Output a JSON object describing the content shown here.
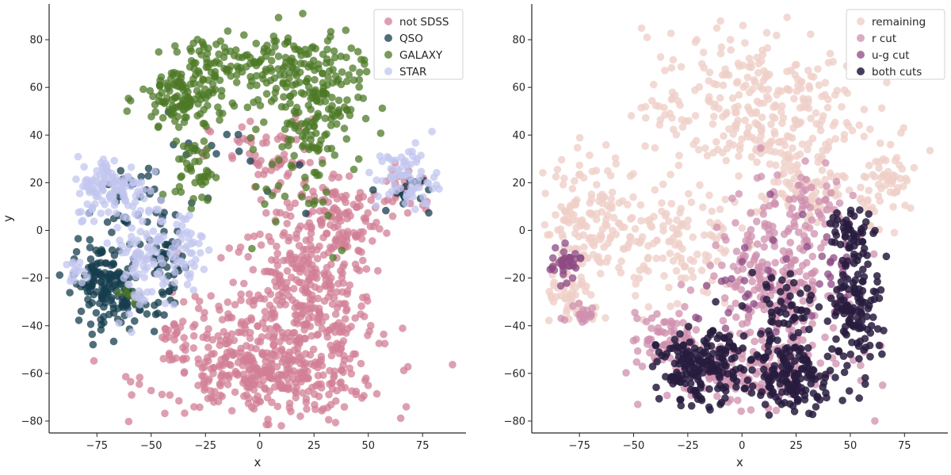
{
  "chart_data": [
    {
      "type": "scatter",
      "xlabel": "x",
      "ylabel": "y",
      "xlim": [
        -97,
        95
      ],
      "ylim": [
        -85,
        95
      ],
      "xticks": [
        -75,
        -50,
        -25,
        0,
        25,
        50,
        75
      ],
      "yticks": [
        -80,
        -60,
        -40,
        -20,
        0,
        20,
        40,
        60,
        80
      ],
      "xtick_labels": [
        "−75",
        "−50",
        "−25",
        "0",
        "25",
        "50",
        "75"
      ],
      "ytick_labels": [
        "−80",
        "−60",
        "−40",
        "−20",
        "0",
        "20",
        "40",
        "60",
        "80"
      ],
      "legend_position": "top-right",
      "grid": false,
      "series": [
        {
          "name": "not SDSS",
          "color": "#d17f96",
          "opacity": 0.75,
          "clusters": [
            {
              "cx": 20,
              "cy": -35,
              "rx": 30,
              "ry": 40,
              "n": 420
            },
            {
              "cx": 2,
              "cy": -62,
              "rx": 50,
              "ry": 13,
              "n": 220
            },
            {
              "cx": 35,
              "cy": 5,
              "rx": 20,
              "ry": 18,
              "n": 110
            },
            {
              "cx": -20,
              "cy": -45,
              "rx": 22,
              "ry": 18,
              "n": 80
            },
            {
              "cx": 5,
              "cy": 30,
              "rx": 25,
              "ry": 15,
              "n": 60
            },
            {
              "cx": 68,
              "cy": 18,
              "rx": 12,
              "ry": 12,
              "n": 30
            },
            {
              "cx": -40,
              "cy": -45,
              "rx": 5,
              "ry": 6,
              "n": 15
            }
          ]
        },
        {
          "name": "QSO",
          "color": "#163d4d",
          "opacity": 0.75,
          "clusters": [
            {
              "cx": -74,
              "cy": -22,
              "rx": 11,
              "ry": 15,
              "n": 110
            },
            {
              "cx": -62,
              "cy": -28,
              "rx": 7,
              "ry": 12,
              "n": 50
            },
            {
              "cx": -43,
              "cy": -15,
              "rx": 8,
              "ry": 17,
              "n": 50
            },
            {
              "cx": -60,
              "cy": 10,
              "rx": 14,
              "ry": 20,
              "n": 35
            },
            {
              "cx": 68,
              "cy": 15,
              "rx": 9,
              "ry": 10,
              "n": 15
            },
            {
              "cx": -15,
              "cy": 25,
              "rx": 45,
              "ry": 20,
              "n": 20
            }
          ]
        },
        {
          "name": "GALAXY",
          "color": "#4e7a27",
          "opacity": 0.75,
          "clusters": [
            {
              "cx": -35,
              "cy": 55,
              "rx": 18,
              "ry": 15,
              "n": 140
            },
            {
              "cx": 25,
              "cy": 55,
              "rx": 20,
              "ry": 25,
              "n": 180
            },
            {
              "cx": 5,
              "cy": 68,
              "rx": 25,
              "ry": 12,
              "n": 90
            },
            {
              "cx": -30,
              "cy": 25,
              "rx": 8,
              "ry": 12,
              "n": 40
            },
            {
              "cx": -18,
              "cy": 72,
              "rx": 14,
              "ry": 10,
              "n": 40
            },
            {
              "cx": 15,
              "cy": 25,
              "rx": 30,
              "ry": 35,
              "n": 30
            },
            {
              "cx": -60,
              "cy": -28,
              "rx": 5,
              "ry": 4,
              "n": 8
            }
          ]
        },
        {
          "name": "STAR",
          "color": "#c1c6ef",
          "opacity": 0.75,
          "clusters": [
            {
              "cx": -68,
              "cy": 18,
              "rx": 15,
              "ry": 12,
              "n": 120
            },
            {
              "cx": -55,
              "cy": -10,
              "rx": 12,
              "ry": 22,
              "n": 90
            },
            {
              "cx": -35,
              "cy": -8,
              "rx": 8,
              "ry": 14,
              "n": 50
            },
            {
              "cx": 68,
              "cy": 22,
              "rx": 13,
              "ry": 13,
              "n": 70
            },
            {
              "cx": -85,
              "cy": -18,
              "rx": 4,
              "ry": 5,
              "n": 15
            }
          ]
        }
      ]
    },
    {
      "type": "scatter",
      "xlabel": "x",
      "ylabel": "",
      "xlim": [
        -97,
        95
      ],
      "ylim": [
        -85,
        95
      ],
      "xticks": [
        -75,
        -50,
        -25,
        0,
        25,
        50,
        75
      ],
      "yticks": [
        -80,
        -60,
        -40,
        -20,
        0,
        20,
        40,
        60,
        80
      ],
      "xtick_labels": [
        "−75",
        "−50",
        "−25",
        "0",
        "25",
        "50",
        "75"
      ],
      "ytick_labels": [
        "−80",
        "−60",
        "−40",
        "−20",
        "0",
        "20",
        "40",
        "60",
        "80"
      ],
      "legend_position": "top-right",
      "grid": false,
      "series": [
        {
          "name": "remaining",
          "color": "#efd0c8",
          "opacity": 0.8,
          "clusters": [
            {
              "cx": 5,
              "cy": 50,
              "rx": 45,
              "ry": 30,
              "n": 320
            },
            {
              "cx": -70,
              "cy": 5,
              "rx": 20,
              "ry": 25,
              "n": 160
            },
            {
              "cx": -30,
              "cy": -5,
              "rx": 25,
              "ry": 25,
              "n": 120
            },
            {
              "cx": 30,
              "cy": 15,
              "rx": 15,
              "ry": 15,
              "n": 70
            },
            {
              "cx": 68,
              "cy": 20,
              "rx": 12,
              "ry": 14,
              "n": 60
            },
            {
              "cx": -78,
              "cy": -30,
              "rx": 12,
              "ry": 8,
              "n": 40
            }
          ]
        },
        {
          "name": "r cut",
          "color": "#cf8fae",
          "opacity": 0.75,
          "clusters": [
            {
              "cx": 15,
              "cy": -20,
              "rx": 28,
              "ry": 30,
              "n": 240
            },
            {
              "cx": 5,
              "cy": -60,
              "rx": 40,
              "ry": 12,
              "n": 150
            },
            {
              "cx": -35,
              "cy": -45,
              "rx": 15,
              "ry": 10,
              "n": 60
            },
            {
              "cx": 35,
              "cy": 10,
              "rx": 15,
              "ry": 15,
              "n": 40
            },
            {
              "cx": -75,
              "cy": -35,
              "rx": 8,
              "ry": 6,
              "n": 20
            }
          ]
        },
        {
          "name": "u-g cut",
          "color": "#8c4a83",
          "opacity": 0.75,
          "clusters": [
            {
              "cx": -82,
              "cy": -14,
              "rx": 7,
              "ry": 6,
              "n": 35
            },
            {
              "cx": 10,
              "cy": -30,
              "rx": 30,
              "ry": 30,
              "n": 40
            },
            {
              "cx": 45,
              "cy": -20,
              "rx": 12,
              "ry": 20,
              "n": 20
            }
          ]
        },
        {
          "name": "both cuts",
          "color": "#281c3e",
          "opacity": 0.85,
          "clusters": [
            {
              "cx": -20,
              "cy": -58,
              "rx": 17,
              "ry": 13,
              "n": 170
            },
            {
              "cx": 25,
              "cy": -62,
              "rx": 17,
              "ry": 12,
              "n": 120
            },
            {
              "cx": 53,
              "cy": -30,
              "rx": 10,
              "ry": 25,
              "n": 130
            },
            {
              "cx": 50,
              "cy": 0,
              "rx": 10,
              "ry": 8,
              "n": 40
            },
            {
              "cx": 20,
              "cy": -35,
              "rx": 15,
              "ry": 20,
              "n": 60
            },
            {
              "cx": 5,
              "cy": -55,
              "rx": 25,
              "ry": 15,
              "n": 40
            }
          ]
        }
      ]
    }
  ]
}
